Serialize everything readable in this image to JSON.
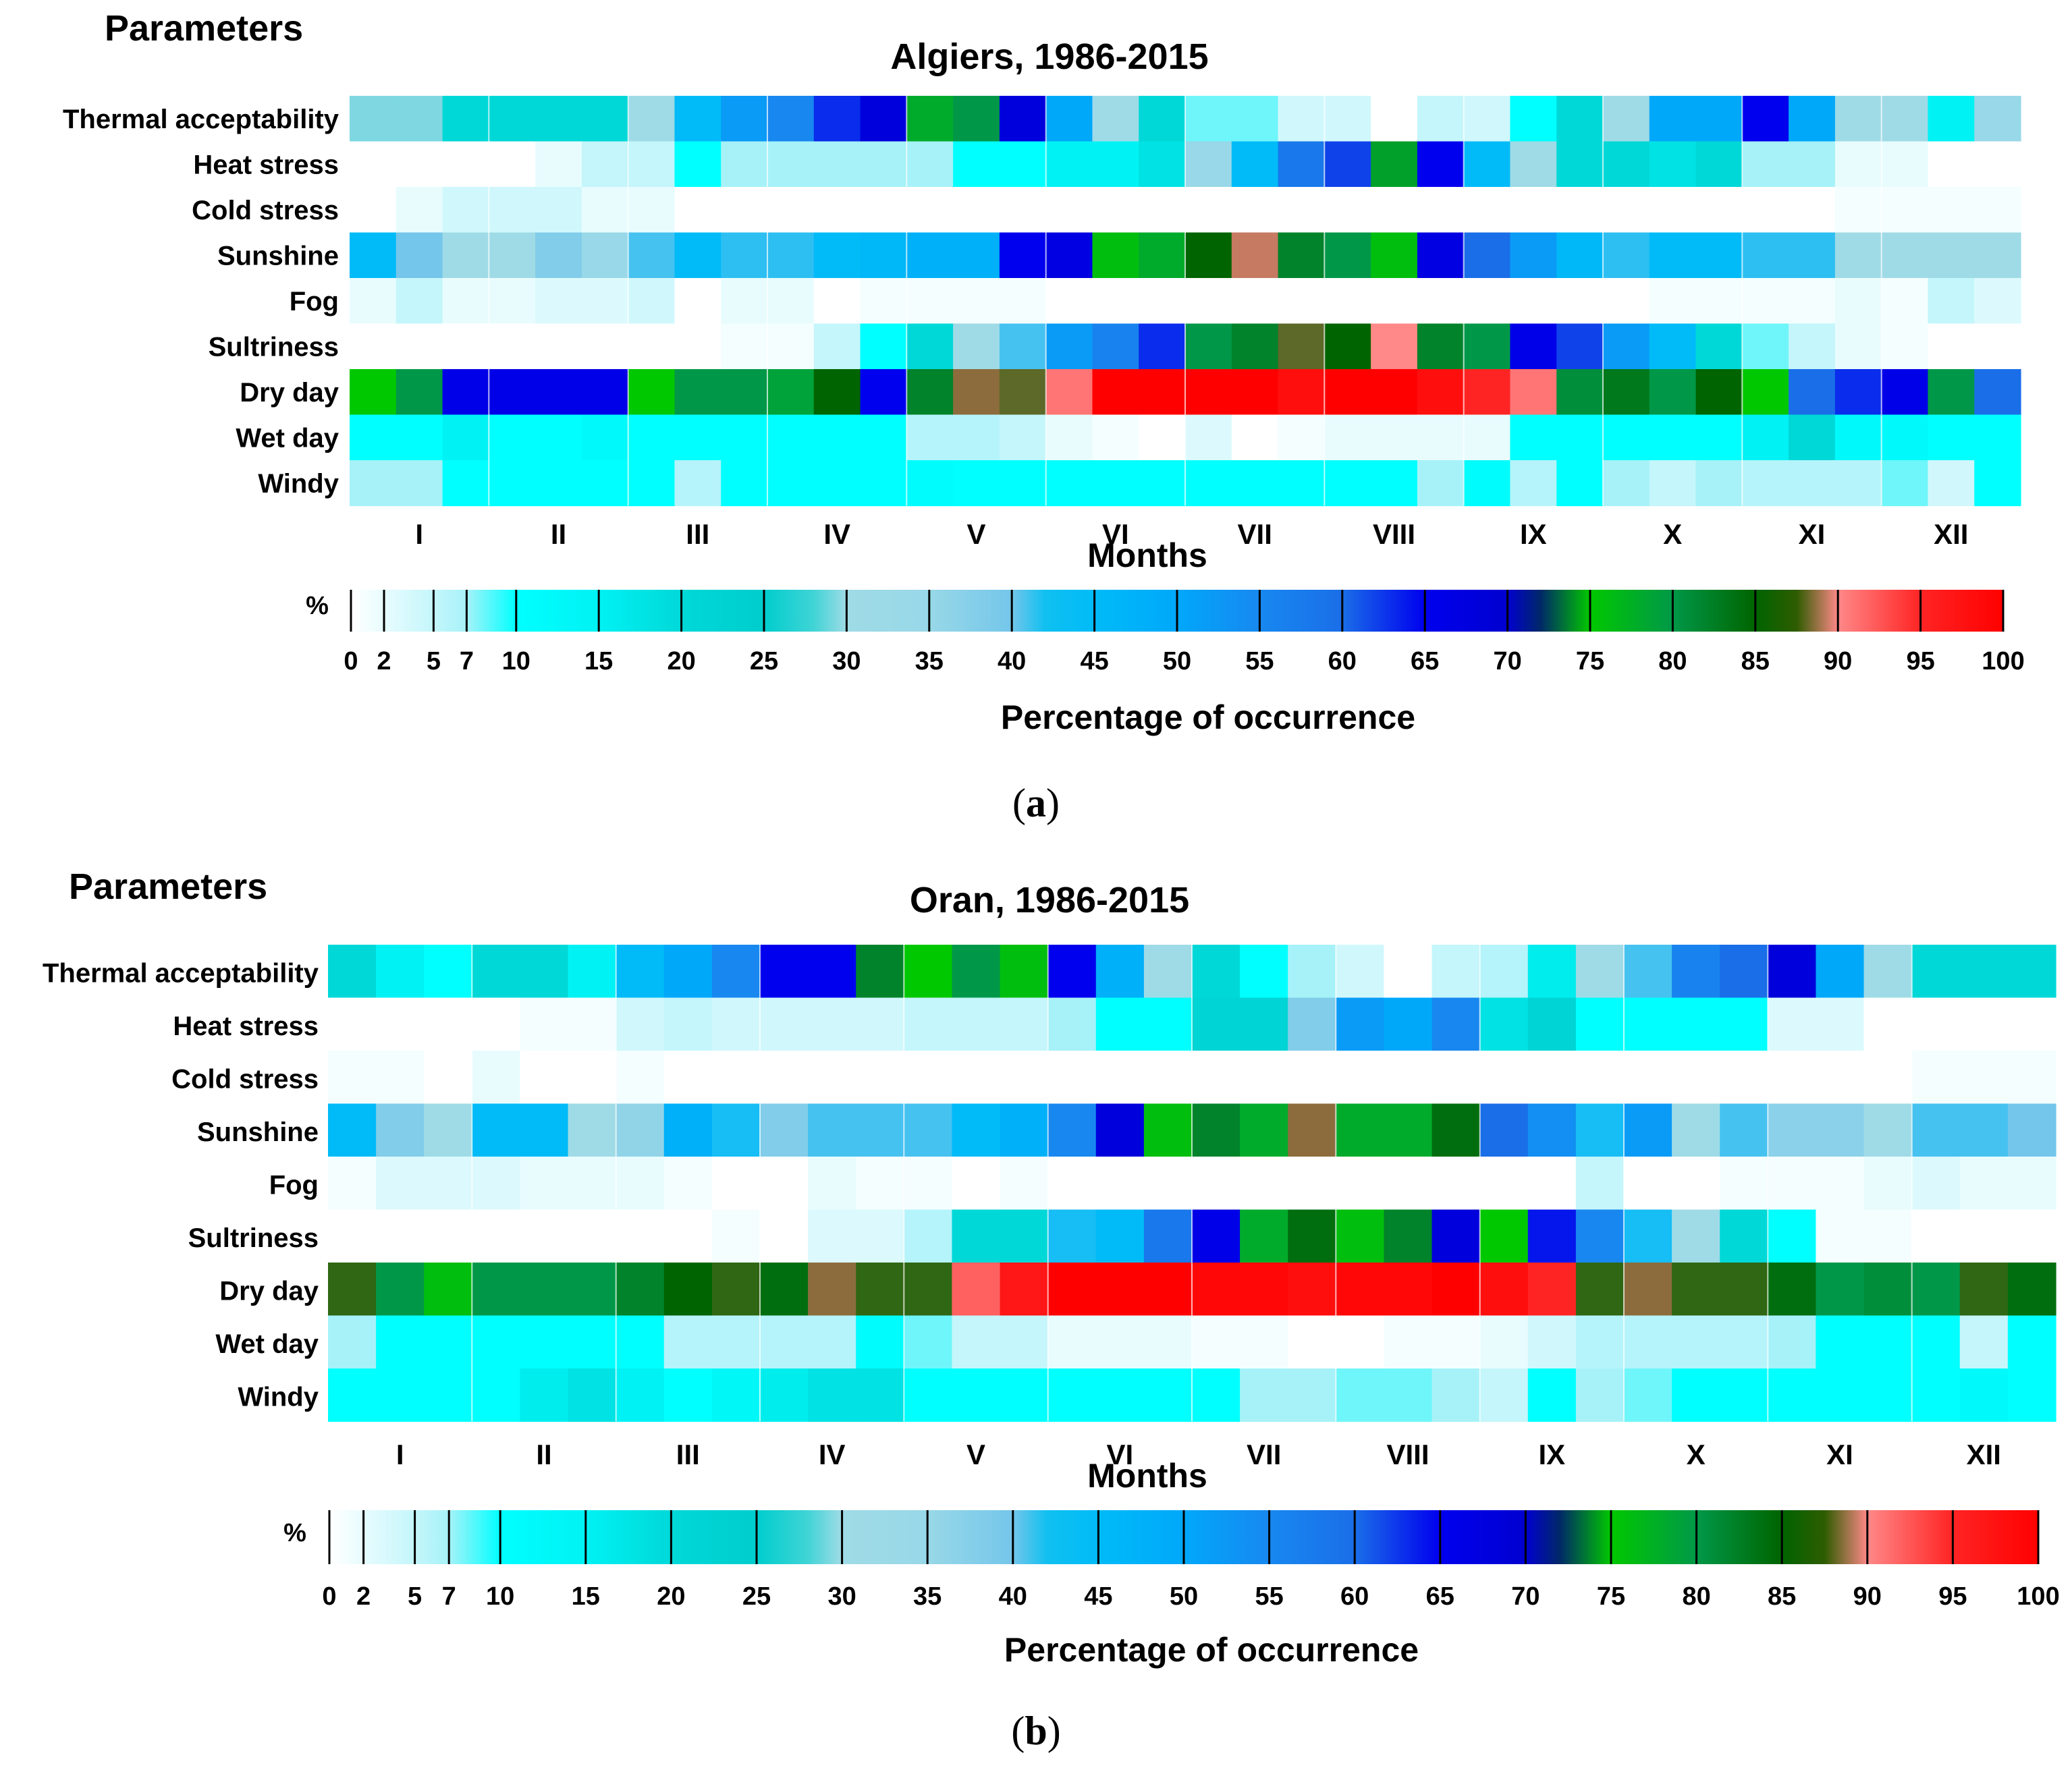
{
  "chart_data": [
    {
      "type": "heatmap",
      "panel_label": "a",
      "title": "Algiers, 1986-2015",
      "ylabel": "Parameters",
      "xlabel": "Months",
      "colorbar_title": "Percentage of occurrence",
      "colorbar_unit": "%",
      "colorbar_ticks": [
        0,
        2,
        5,
        7,
        10,
        15,
        20,
        25,
        30,
        35,
        40,
        45,
        50,
        55,
        60,
        65,
        70,
        75,
        80,
        85,
        90,
        95,
        100
      ],
      "vrange": [
        0,
        100
      ],
      "columns_per_month": 3,
      "months": [
        "I",
        "II",
        "III",
        "IV",
        "V",
        "VI",
        "VII",
        "VIII",
        "IX",
        "X",
        "XI",
        "XII"
      ],
      "parameters": [
        "Thermal acceptability",
        "Heat stress",
        "Cold stress",
        "Sunshine",
        "Fog",
        "Sultriness",
        "Dry day",
        "Wet day",
        "Windy"
      ],
      "values": [
        [
          29,
          29,
          20,
          20,
          20,
          20,
          30,
          45,
          52,
          55,
          63,
          68,
          78,
          80,
          68,
          50,
          30,
          20,
          8,
          8,
          4,
          4,
          0,
          5,
          4,
          10,
          20,
          30,
          50,
          50,
          65,
          50,
          30,
          30,
          15,
          35
        ],
        [
          0,
          0,
          0,
          0,
          2,
          5,
          5,
          10,
          7,
          7,
          7,
          7,
          7,
          10,
          10,
          15,
          15,
          18,
          35,
          45,
          58,
          62,
          74,
          65,
          45,
          30,
          20,
          20,
          18,
          20,
          7,
          7,
          2,
          2,
          0,
          0
        ],
        [
          0,
          2,
          4,
          4,
          4,
          2,
          2,
          0,
          0,
          0,
          0,
          0,
          0,
          0,
          0,
          0,
          0,
          0,
          0,
          0,
          0,
          0,
          0,
          0,
          0,
          0,
          0,
          0,
          0,
          0,
          0,
          0,
          1,
          1,
          1,
          1
        ],
        [
          45,
          40,
          30,
          30,
          38,
          35,
          42,
          45,
          43,
          43,
          45,
          46,
          48,
          48,
          65,
          67,
          76,
          78,
          85,
          89,
          82,
          80,
          76,
          67,
          60,
          52,
          46,
          43,
          45,
          45,
          43,
          43,
          30,
          30,
          30,
          30
        ],
        [
          2,
          5,
          2,
          2,
          3,
          3,
          4,
          0,
          2,
          2,
          0,
          1,
          1,
          1,
          1,
          0,
          0,
          0,
          0,
          0,
          0,
          0,
          0,
          0,
          0,
          0,
          0,
          0,
          1,
          1,
          1,
          1,
          2,
          1,
          5,
          3
        ],
        [
          0,
          0,
          0,
          0,
          0,
          0,
          0,
          0,
          1,
          1,
          5,
          10,
          20,
          30,
          42,
          52,
          56,
          63,
          80,
          82,
          87,
          85,
          90,
          82,
          80,
          66,
          62,
          52,
          45,
          20,
          8,
          5,
          2,
          1,
          0,
          0
        ],
        [
          75,
          80,
          66,
          66,
          66,
          66,
          75,
          80,
          80,
          79,
          85,
          65,
          82,
          88,
          87,
          91,
          100,
          100,
          100,
          100,
          98,
          100,
          100,
          98,
          95,
          91,
          81,
          83,
          80,
          85,
          75,
          60,
          63,
          66,
          80,
          60
        ],
        [
          10,
          10,
          15,
          10,
          10,
          12,
          10,
          10,
          10,
          10,
          10,
          10,
          6,
          6,
          5,
          2,
          1,
          0,
          3,
          0,
          1,
          2,
          2,
          2,
          2,
          10,
          10,
          10,
          10,
          10,
          15,
          20,
          12,
          12,
          10,
          10
        ],
        [
          7,
          7,
          10,
          10,
          10,
          10,
          10,
          6,
          10,
          10,
          10,
          10,
          11,
          10,
          10,
          10,
          10,
          10,
          10,
          10,
          10,
          10,
          10,
          7,
          11,
          6,
          10,
          7,
          5,
          7,
          6,
          6,
          6,
          8,
          4,
          10
        ]
      ]
    },
    {
      "type": "heatmap",
      "panel_label": "b",
      "title": "Oran, 1986-2015",
      "ylabel": "Parameters",
      "xlabel": "Months",
      "colorbar_title": "Percentage of occurrence",
      "colorbar_unit": "%",
      "colorbar_ticks": [
        0,
        2,
        5,
        7,
        10,
        15,
        20,
        25,
        30,
        35,
        40,
        45,
        50,
        55,
        60,
        65,
        70,
        75,
        80,
        85,
        90,
        95,
        100
      ],
      "vrange": [
        0,
        100
      ],
      "columns_per_month": 3,
      "months": [
        "I",
        "II",
        "III",
        "IV",
        "V",
        "VI",
        "VII",
        "VIII",
        "IX",
        "X",
        "XI",
        "XII"
      ],
      "parameters": [
        "Thermal acceptability",
        "Heat stress",
        "Cold stress",
        "Sunshine",
        "Fog",
        "Sultriness",
        "Dry day",
        "Wet day",
        "Windy"
      ],
      "values": [
        [
          20,
          15,
          10,
          20,
          20,
          15,
          45,
          50,
          55,
          65,
          65,
          82,
          75,
          80,
          76,
          65,
          48,
          30,
          20,
          10,
          7,
          4,
          0,
          5,
          6,
          16,
          30,
          42,
          56,
          60,
          68,
          50,
          30,
          20,
          20,
          20
        ],
        [
          0,
          0,
          0,
          0,
          1,
          1,
          4,
          5,
          4,
          4,
          4,
          4,
          5,
          5,
          5,
          7,
          10,
          10,
          22,
          22,
          38,
          52,
          50,
          55,
          18,
          22,
          10,
          10,
          10,
          10,
          3,
          3,
          0,
          0,
          0,
          0
        ],
        [
          1,
          1,
          0,
          2,
          0,
          0,
          1,
          0,
          0,
          0,
          0,
          0,
          0,
          0,
          0,
          0,
          0,
          0,
          0,
          0,
          0,
          0,
          0,
          0,
          0,
          0,
          0,
          0,
          0,
          0,
          0,
          0,
          0,
          1,
          1,
          1
        ],
        [
          45,
          38,
          30,
          45,
          45,
          30,
          36,
          48,
          44,
          38,
          42,
          42,
          42,
          45,
          48,
          55,
          68,
          76,
          82,
          78,
          88,
          78,
          78,
          84,
          60,
          54,
          44,
          52,
          30,
          42,
          37,
          37,
          30,
          42,
          42,
          40
        ],
        [
          1,
          3,
          3,
          3,
          2,
          2,
          2,
          1,
          0,
          0,
          2,
          1,
          1,
          0,
          1,
          0,
          0,
          0,
          0,
          0,
          0,
          0,
          0,
          0,
          0,
          0,
          5,
          0,
          0,
          1,
          1,
          1,
          2,
          3,
          2,
          2
        ],
        [
          0,
          0,
          0,
          0,
          0,
          0,
          0,
          0,
          1,
          0,
          3,
          3,
          6,
          20,
          20,
          44,
          45,
          58,
          66,
          78,
          84,
          76,
          82,
          68,
          75,
          64,
          55,
          44,
          30,
          20,
          10,
          1,
          1,
          0,
          0,
          0
        ],
        [
          86,
          80,
          76,
          80,
          80,
          80,
          82,
          85,
          86,
          84,
          88,
          86,
          86,
          92,
          97,
          100,
          100,
          100,
          99,
          99,
          98,
          99,
          99,
          100,
          98,
          95,
          86,
          88,
          86,
          86,
          84,
          80,
          81,
          80,
          86,
          84
        ],
        [
          7,
          10,
          10,
          10,
          10,
          10,
          10,
          6,
          6,
          6,
          6,
          11,
          8,
          5,
          5,
          2,
          2,
          2,
          1,
          1,
          0,
          0,
          1,
          1,
          2,
          4,
          6,
          6,
          6,
          6,
          7,
          10,
          10,
          10,
          5,
          10
        ],
        [
          10,
          10,
          10,
          10,
          16,
          18,
          15,
          10,
          13,
          16,
          18,
          18,
          10,
          10,
          10,
          10,
          10,
          10,
          10,
          7,
          7,
          8,
          8,
          7,
          5,
          10,
          7,
          8,
          10,
          10,
          10,
          10,
          10,
          10,
          12,
          10
        ]
      ]
    }
  ]
}
